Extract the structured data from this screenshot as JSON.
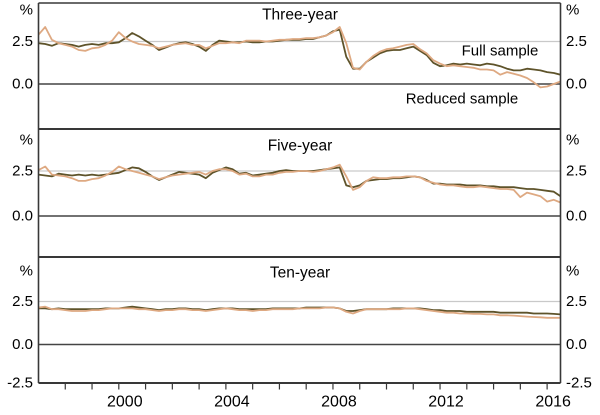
{
  "chart_data": {
    "type": "line",
    "description": "Three stacked time-series panels of inflation expectations (per cent), full sample vs reduced sample, 1997 to 2016",
    "unit": "%",
    "x_start": 1997.0,
    "x_step": 0.25,
    "x_end": 2016.5,
    "x_tick_first_year": 1998,
    "x_tick_last_year": 2016,
    "x_tick_interval_years": 1,
    "x_axis_labels": [
      "2000",
      "2004",
      "2008",
      "2012",
      "2016"
    ],
    "x_axis_label_years": [
      2000,
      2004,
      2008,
      2012,
      2016
    ],
    "y_gridline_value": 2.5,
    "y_zero_value": 0.0,
    "y_axis_side_labels": [
      "%",
      "2.5",
      "0.0"
    ],
    "y_axis_bottom_label": "-2.5",
    "ylim_approx": [
      -2.5,
      4.7
    ],
    "grid": "single light gridline at 2.5 plus solid zero line per panel",
    "legend_position": "annotations inside top panel",
    "legend": [
      {
        "name": "Full sample",
        "color": "#5e532a"
      },
      {
        "name": "Reduced sample",
        "color": "#dea982"
      }
    ],
    "panels": [
      {
        "title": "Three-year",
        "series": [
          {
            "name": "Full sample",
            "values": [
              2.4,
              2.35,
              2.25,
              2.4,
              2.35,
              2.3,
              2.2,
              2.3,
              2.35,
              2.3,
              2.4,
              2.4,
              2.45,
              2.7,
              3.0,
              2.8,
              2.55,
              2.3,
              2.0,
              2.15,
              2.3,
              2.4,
              2.45,
              2.35,
              2.2,
              1.95,
              2.3,
              2.55,
              2.5,
              2.45,
              2.45,
              2.5,
              2.45,
              2.45,
              2.5,
              2.5,
              2.55,
              2.6,
              2.6,
              2.6,
              2.65,
              2.65,
              2.75,
              2.85,
              3.1,
              3.2,
              1.6,
              0.9,
              0.9,
              1.3,
              1.55,
              1.8,
              1.95,
              2.0,
              2.0,
              2.1,
              2.2,
              1.95,
              1.7,
              1.25,
              1.05,
              1.1,
              1.2,
              1.15,
              1.2,
              1.15,
              1.1,
              1.2,
              1.15,
              1.05,
              0.9,
              0.8,
              0.8,
              0.9,
              0.85,
              0.8,
              0.7,
              0.65,
              0.55
            ]
          },
          {
            "name": "Reduced sample",
            "values": [
              2.9,
              3.35,
              2.6,
              2.4,
              2.3,
              2.2,
              2.0,
              1.95,
              2.1,
              2.15,
              2.3,
              2.55,
              3.05,
              2.7,
              2.5,
              2.35,
              2.3,
              2.25,
              2.1,
              2.2,
              2.3,
              2.35,
              2.4,
              2.3,
              2.3,
              2.1,
              2.25,
              2.4,
              2.4,
              2.45,
              2.4,
              2.55,
              2.55,
              2.55,
              2.5,
              2.55,
              2.6,
              2.6,
              2.65,
              2.65,
              2.7,
              2.7,
              2.75,
              2.85,
              3.05,
              3.35,
              2.4,
              0.95,
              0.85,
              1.3,
              1.65,
              1.9,
              2.05,
              2.1,
              2.2,
              2.3,
              2.35,
              2.05,
              1.8,
              1.4,
              1.2,
              1.05,
              1.1,
              1.05,
              1.0,
              0.95,
              0.85,
              0.85,
              0.8,
              0.55,
              0.7,
              0.6,
              0.5,
              0.35,
              0.1,
              -0.2,
              -0.15,
              0.0,
              0.15
            ]
          }
        ]
      },
      {
        "title": "Five-year",
        "series": [
          {
            "name": "Full sample",
            "values": [
              2.3,
              2.25,
              2.2,
              2.35,
              2.3,
              2.25,
              2.3,
              2.25,
              2.3,
              2.25,
              2.3,
              2.35,
              2.4,
              2.55,
              2.7,
              2.65,
              2.45,
              2.2,
              2.0,
              2.15,
              2.3,
              2.45,
              2.4,
              2.35,
              2.3,
              2.1,
              2.4,
              2.55,
              2.7,
              2.6,
              2.35,
              2.4,
              2.25,
              2.3,
              2.35,
              2.4,
              2.5,
              2.55,
              2.5,
              2.5,
              2.5,
              2.5,
              2.55,
              2.6,
              2.65,
              2.7,
              1.7,
              1.6,
              1.7,
              1.95,
              2.0,
              2.05,
              2.05,
              2.1,
              2.1,
              2.15,
              2.2,
              2.15,
              2.0,
              1.8,
              1.8,
              1.75,
              1.75,
              1.75,
              1.7,
              1.7,
              1.7,
              1.65,
              1.65,
              1.6,
              1.6,
              1.6,
              1.55,
              1.5,
              1.5,
              1.45,
              1.4,
              1.35,
              1.1
            ]
          },
          {
            "name": "Reduced sample",
            "values": [
              2.55,
              2.75,
              2.3,
              2.25,
              2.2,
              2.1,
              1.95,
              1.95,
              2.05,
              2.1,
              2.25,
              2.45,
              2.75,
              2.6,
              2.5,
              2.4,
              2.3,
              2.2,
              2.05,
              2.15,
              2.25,
              2.3,
              2.35,
              2.4,
              2.45,
              2.3,
              2.5,
              2.6,
              2.6,
              2.5,
              2.3,
              2.35,
              2.2,
              2.2,
              2.3,
              2.3,
              2.4,
              2.45,
              2.45,
              2.5,
              2.5,
              2.45,
              2.5,
              2.6,
              2.7,
              2.85,
              2.2,
              1.45,
              1.6,
              1.95,
              2.15,
              2.1,
              2.1,
              2.15,
              2.15,
              2.2,
              2.2,
              2.15,
              1.95,
              1.85,
              1.75,
              1.7,
              1.7,
              1.65,
              1.6,
              1.6,
              1.65,
              1.6,
              1.55,
              1.5,
              1.5,
              1.45,
              1.05,
              1.3,
              1.2,
              1.1,
              0.8,
              0.9,
              0.75
            ]
          }
        ]
      },
      {
        "title": "Ten-year",
        "series": [
          {
            "name": "Full sample",
            "values": [
              2.1,
              2.1,
              2.05,
              2.1,
              2.05,
              2.05,
              2.05,
              2.05,
              2.05,
              2.05,
              2.1,
              2.1,
              2.1,
              2.15,
              2.2,
              2.15,
              2.1,
              2.05,
              2.0,
              2.05,
              2.05,
              2.1,
              2.1,
              2.05,
              2.05,
              2.0,
              2.05,
              2.1,
              2.1,
              2.1,
              2.05,
              2.05,
              2.05,
              2.05,
              2.05,
              2.1,
              2.1,
              2.1,
              2.1,
              2.1,
              2.15,
              2.15,
              2.15,
              2.15,
              2.15,
              2.1,
              1.95,
              1.95,
              2.0,
              2.05,
              2.05,
              2.05,
              2.05,
              2.1,
              2.1,
              2.1,
              2.1,
              2.1,
              2.05,
              2.0,
              2.0,
              1.95,
              1.95,
              1.95,
              1.9,
              1.9,
              1.9,
              1.9,
              1.9,
              1.85,
              1.85,
              1.85,
              1.85,
              1.85,
              1.8,
              1.8,
              1.8,
              1.78,
              1.75
            ]
          },
          {
            "name": "Reduced sample",
            "values": [
              2.15,
              2.2,
              2.05,
              2.05,
              2.0,
              1.95,
              1.95,
              1.95,
              2.0,
              2.0,
              2.05,
              2.1,
              2.1,
              2.1,
              2.1,
              2.05,
              2.05,
              2.0,
              1.95,
              2.0,
              2.0,
              2.05,
              2.05,
              2.0,
              2.0,
              1.95,
              2.0,
              2.05,
              2.1,
              2.05,
              2.0,
              2.0,
              1.95,
              2.0,
              2.0,
              2.05,
              2.05,
              2.05,
              2.05,
              2.1,
              2.1,
              2.1,
              2.1,
              2.15,
              2.15,
              2.1,
              1.9,
              1.8,
              1.95,
              2.05,
              2.05,
              2.05,
              2.05,
              2.05,
              2.05,
              2.1,
              2.1,
              2.05,
              2.0,
              1.95,
              1.9,
              1.85,
              1.85,
              1.8,
              1.8,
              1.78,
              1.78,
              1.75,
              1.75,
              1.7,
              1.7,
              1.68,
              1.65,
              1.62,
              1.6,
              1.58,
              1.55,
              1.55,
              1.55
            ]
          }
        ]
      }
    ]
  },
  "colors": {
    "full_sample": "#5e532a",
    "reduced_sample": "#dea982",
    "gridline": "#c9c9c9",
    "frame": "#383838",
    "zero_line": "#444444",
    "background": "#ffffff",
    "text": "#000000"
  }
}
